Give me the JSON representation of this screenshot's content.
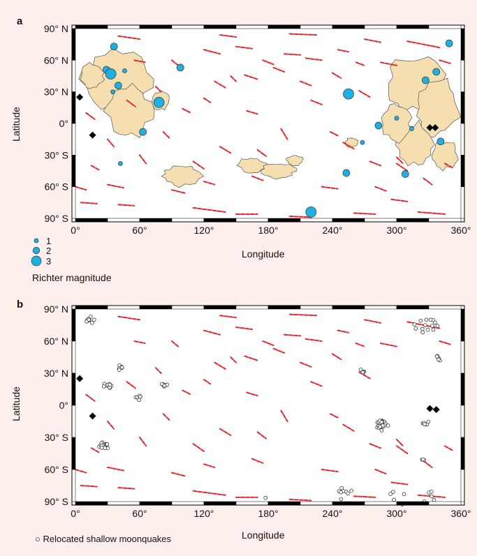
{
  "panel_a": {
    "letter": "a",
    "xlabel": "Longitude",
    "ylabel": "Latitude",
    "legend_sizes": [
      {
        "label": "1",
        "magnitude": 1
      },
      {
        "label": "2",
        "magnitude": 2
      },
      {
        "label": "3",
        "magnitude": 3
      }
    ],
    "legend_title": "Richter magnitude"
  },
  "panel_b": {
    "letter": "b",
    "xlabel": "Longitude",
    "ylabel": "Latitude",
    "caption": "Relocated shallow moonquakes"
  },
  "colors": {
    "background": "#fdf0ec",
    "scarp": "#e8232c",
    "mare": "#f5deb0",
    "quake": "#1eb0e0",
    "frame": "#000000"
  },
  "chart_data": [
    {
      "type": "scatter",
      "panel": "a",
      "x": {
        "label": "Longitude",
        "range": [
          0,
          360
        ],
        "ticks": [
          "0°",
          "60°",
          "120°",
          "180°",
          "240°",
          "300°",
          "360°"
        ]
      },
      "y": {
        "label": "Latitude",
        "range": [
          -90,
          90
        ],
        "ticks": [
          "90° N",
          "60° N",
          "30° N",
          "0°",
          "30° S",
          "60° S",
          "90° S"
        ]
      },
      "series": [
        {
          "marker": "circle",
          "points": [
            {
              "lon": 36,
              "lat": 73,
              "mag": 2
            },
            {
              "lon": 29,
              "lat": 51,
              "mag": 2
            },
            {
              "lon": 33,
              "lat": 47,
              "mag": 3
            },
            {
              "lon": 46,
              "lat": 50,
              "mag": 1
            },
            {
              "lon": 40,
              "lat": 36,
              "mag": 2
            },
            {
              "lon": 35,
              "lat": 30,
              "mag": 1
            },
            {
              "lon": 78,
              "lat": 20,
              "mag": 3
            },
            {
              "lon": 63,
              "lat": -8,
              "mag": 2
            },
            {
              "lon": 98,
              "lat": 53,
              "mag": 2
            },
            {
              "lon": 42,
              "lat": -38,
              "mag": 1
            },
            {
              "lon": 220,
              "lat": -84,
              "mag": 3
            },
            {
              "lon": 255,
              "lat": 28,
              "mag": 3
            },
            {
              "lon": 253,
              "lat": -47,
              "mag": 2
            },
            {
              "lon": 268,
              "lat": -18,
              "mag": 1
            },
            {
              "lon": 283,
              "lat": -2,
              "mag": 2
            },
            {
              "lon": 300,
              "lat": 5,
              "mag": 1
            },
            {
              "lon": 308,
              "lat": -48,
              "mag": 2
            },
            {
              "lon": 314,
              "lat": -5,
              "mag": 1
            },
            {
              "lon": 327,
              "lat": 41,
              "mag": 2
            },
            {
              "lon": 337,
              "lat": 49,
              "mag": 2
            },
            {
              "lon": 341,
              "lat": -17,
              "mag": 2
            },
            {
              "lon": 349,
              "lat": 76,
              "mag": 2
            }
          ]
        },
        {
          "marker": "diamond",
          "points": [
            {
              "lon": 4,
              "lat": 25
            },
            {
              "lon": 16,
              "lat": -11
            },
            {
              "lon": 331,
              "lat": -4
            },
            {
              "lon": 336,
              "lat": -4
            }
          ]
        }
      ],
      "scarps": [
        [
          40,
          83,
          60,
          80
        ],
        [
          135,
          84,
          150,
          82
        ],
        [
          200,
          85,
          225,
          84
        ],
        [
          270,
          80,
          285,
          77
        ],
        [
          310,
          78,
          340,
          72
        ],
        [
          120,
          70,
          135,
          66
        ],
        [
          150,
          73,
          165,
          71
        ],
        [
          175,
          60,
          185,
          56
        ],
        [
          195,
          66,
          210,
          65
        ],
        [
          215,
          62,
          230,
          60
        ],
        [
          245,
          70,
          255,
          68
        ],
        [
          285,
          58,
          300,
          55
        ],
        [
          340,
          60,
          350,
          57
        ],
        [
          130,
          40,
          140,
          34
        ],
        [
          158,
          46,
          170,
          42
        ],
        [
          185,
          53,
          195,
          49
        ],
        [
          210,
          40,
          220,
          36
        ],
        [
          240,
          48,
          248,
          43
        ],
        [
          265,
          31,
          275,
          25
        ],
        [
          48,
          22,
          56,
          16
        ],
        [
          10,
          10,
          18,
          4
        ],
        [
          100,
          14,
          108,
          10
        ],
        [
          160,
          12,
          170,
          9
        ],
        [
          220,
          22,
          230,
          18
        ],
        [
          192,
          -5,
          198,
          -15
        ],
        [
          170,
          -25,
          178,
          -31
        ],
        [
          135,
          -22,
          145,
          -28
        ],
        [
          110,
          -36,
          120,
          -43
        ],
        [
          60,
          -30,
          66,
          -38
        ],
        [
          30,
          -15,
          36,
          -22
        ],
        [
          250,
          -18,
          260,
          -24
        ],
        [
          275,
          -36,
          285,
          -40
        ],
        [
          300,
          -38,
          310,
          -45
        ],
        [
          325,
          -52,
          333,
          -58
        ],
        [
          345,
          -38,
          352,
          -42
        ],
        [
          0,
          -60,
          10,
          -63
        ],
        [
          30,
          -58,
          45,
          -61
        ],
        [
          90,
          -63,
          102,
          -66
        ],
        [
          120,
          -55,
          130,
          -58
        ],
        [
          165,
          -50,
          175,
          -54
        ],
        [
          5,
          -75,
          20,
          -76
        ],
        [
          40,
          -77,
          55,
          -78
        ],
        [
          110,
          -80,
          140,
          -84
        ],
        [
          150,
          -86,
          170,
          -86
        ],
        [
          200,
          -88,
          220,
          -89
        ],
        [
          260,
          -85,
          280,
          -86
        ],
        [
          295,
          -72,
          310,
          -74
        ],
        [
          320,
          -84,
          345,
          -86
        ],
        [
          230,
          -60,
          245,
          -62
        ],
        [
          280,
          -60,
          290,
          -64
        ],
        [
          145,
          45,
          150,
          40
        ],
        [
          90,
          60,
          96,
          55
        ],
        [
          55,
          60,
          65,
          58
        ],
        [
          238,
          -8,
          246,
          -12
        ],
        [
          300,
          -32,
          306,
          -38
        ],
        [
          82,
          -8,
          88,
          -14
        ],
        [
          120,
          24,
          126,
          20
        ],
        [
          15,
          -40,
          22,
          -44
        ],
        [
          75,
          35,
          80,
          30
        ],
        [
          262,
          58,
          270,
          55
        ]
      ],
      "maria": [
        {
          "lon": 40,
          "lat": 42,
          "rx": 36,
          "ry": 30
        },
        {
          "lon": 50,
          "lat": 12,
          "rx": 22,
          "ry": 26
        },
        {
          "lon": 15,
          "lat": 45,
          "rx": 12,
          "ry": 12
        },
        {
          "lon": 80,
          "lat": 22,
          "rx": 8,
          "ry": 10
        },
        {
          "lon": 318,
          "lat": 38,
          "rx": 28,
          "ry": 28
        },
        {
          "lon": 338,
          "lat": 15,
          "rx": 22,
          "ry": 30
        },
        {
          "lon": 318,
          "lat": -20,
          "rx": 18,
          "ry": 22
        },
        {
          "lon": 300,
          "lat": 0,
          "rx": 14,
          "ry": 18
        },
        {
          "lon": 345,
          "lat": -30,
          "rx": 12,
          "ry": 14
        },
        {
          "lon": 100,
          "lat": -50,
          "rx": 20,
          "ry": 10
        },
        {
          "lon": 165,
          "lat": -40,
          "rx": 14,
          "ry": 8
        },
        {
          "lon": 190,
          "lat": -45,
          "rx": 16,
          "ry": 8
        },
        {
          "lon": 205,
          "lat": -35,
          "rx": 8,
          "ry": 5
        },
        {
          "lon": 258,
          "lat": -18,
          "rx": 6,
          "ry": 5
        }
      ]
    },
    {
      "type": "scatter",
      "panel": "b",
      "x": {
        "label": "Longitude",
        "range": [
          0,
          360
        ],
        "ticks": [
          "0°",
          "60°",
          "120°",
          "180°",
          "240°",
          "300°",
          "360°"
        ]
      },
      "y": {
        "label": "Latitude",
        "range": [
          -90,
          90
        ],
        "ticks": [
          "90° N",
          "60° N",
          "30° N",
          "0°",
          "30° S",
          "60° S",
          "90° S"
        ]
      },
      "series": [
        {
          "name": "Relocated shallow moonquakes",
          "marker": "open-circle",
          "clusters": [
            {
              "lon": 14,
              "lat": 80,
              "n": 9,
              "spread": 5
            },
            {
              "lon": 30,
              "lat": 19,
              "n": 10,
              "spread": 4
            },
            {
              "lon": 42,
              "lat": 35,
              "n": 8,
              "spread": 3
            },
            {
              "lon": 27,
              "lat": -38,
              "n": 14,
              "spread": 5
            },
            {
              "lon": 59,
              "lat": 7,
              "n": 6,
              "spread": 3
            },
            {
              "lon": 83,
              "lat": 19,
              "n": 9,
              "spread": 3
            },
            {
              "lon": 267,
              "lat": 32,
              "n": 5,
              "spread": 3
            },
            {
              "lon": 286,
              "lat": -19,
              "n": 22,
              "spread": 6
            },
            {
              "lon": 327,
              "lat": 76,
              "n": 14,
              "spread": 12
            },
            {
              "lon": 339,
              "lat": 44,
              "n": 6,
              "spread": 3
            },
            {
              "lon": 327,
              "lat": -16,
              "n": 6,
              "spread": 3
            },
            {
              "lon": 325,
              "lat": -51,
              "n": 3,
              "spread": 2
            },
            {
              "lon": 250,
              "lat": -84,
              "n": 8,
              "spread": 12
            },
            {
              "lon": 300,
              "lat": -86,
              "n": 5,
              "spread": 10
            },
            {
              "lon": 330,
              "lat": -86,
              "n": 6,
              "spread": 8
            },
            {
              "lon": 178,
              "lat": -87,
              "n": 1,
              "spread": 1
            }
          ]
        },
        {
          "marker": "diamond",
          "points": [
            {
              "lon": 4,
              "lat": 25
            },
            {
              "lon": 16,
              "lat": -10
            },
            {
              "lon": 331,
              "lat": -3
            },
            {
              "lon": 337,
              "lat": -4
            }
          ]
        }
      ]
    }
  ]
}
